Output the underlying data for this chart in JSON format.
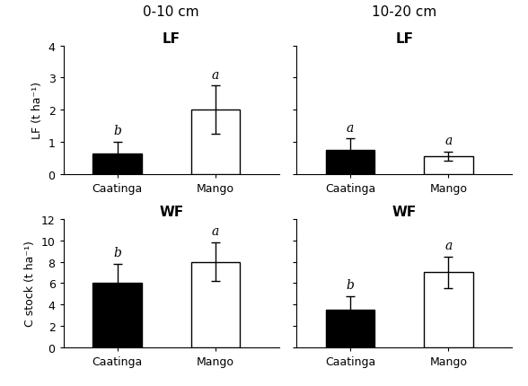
{
  "top_left": {
    "col_title": "0-10 cm",
    "sub_title": "LF",
    "categories": [
      "Caatinga",
      "Mango"
    ],
    "values": [
      0.65,
      2.0
    ],
    "errors": [
      0.35,
      0.75
    ],
    "letters": [
      "b",
      "a"
    ],
    "colors": [
      "black",
      "white"
    ],
    "ylabel": "LF (t ha⁻¹)",
    "ylim": [
      0,
      4
    ],
    "yticks": [
      0,
      1,
      2,
      3,
      4
    ],
    "show_yticks": true
  },
  "top_right": {
    "col_title": "10-20 cm",
    "sub_title": "LF",
    "categories": [
      "Caatinga",
      "Mango"
    ],
    "values": [
      0.75,
      0.55
    ],
    "errors": [
      0.35,
      0.15
    ],
    "letters": [
      "a",
      "a"
    ],
    "colors": [
      "black",
      "white"
    ],
    "ylabel": "",
    "ylim": [
      0,
      4
    ],
    "yticks": [
      0,
      1,
      2,
      3,
      4
    ],
    "show_yticks": false
  },
  "bot_left": {
    "col_title": "",
    "sub_title": "WF",
    "categories": [
      "Caatinga",
      "Mango"
    ],
    "values": [
      6.0,
      8.0
    ],
    "errors": [
      1.8,
      1.8
    ],
    "letters": [
      "b",
      "a"
    ],
    "colors": [
      "black",
      "white"
    ],
    "ylabel": "C stock (t ha⁻¹)",
    "ylim": [
      0,
      12
    ],
    "yticks": [
      0,
      2,
      4,
      6,
      8,
      10,
      12
    ],
    "show_yticks": true
  },
  "bot_right": {
    "col_title": "",
    "sub_title": "WF",
    "categories": [
      "Caatinga",
      "Mango"
    ],
    "values": [
      3.5,
      7.0
    ],
    "errors": [
      1.3,
      1.5
    ],
    "letters": [
      "b",
      "a"
    ],
    "colors": [
      "black",
      "white"
    ],
    "ylabel": "",
    "ylim": [
      0,
      12
    ],
    "yticks": [
      0,
      2,
      4,
      6,
      8,
      10,
      12
    ],
    "show_yticks": false
  },
  "bar_width": 0.5,
  "bar_positions": [
    0.75,
    1.75
  ],
  "xlim": [
    0.2,
    2.4
  ],
  "edgecolor": "black",
  "linewidth": 1.0,
  "col_title_fontsize": 11,
  "sub_title_fontsize": 11,
  "tick_fontsize": 9,
  "ylabel_fontsize": 9,
  "letter_fontsize": 10
}
